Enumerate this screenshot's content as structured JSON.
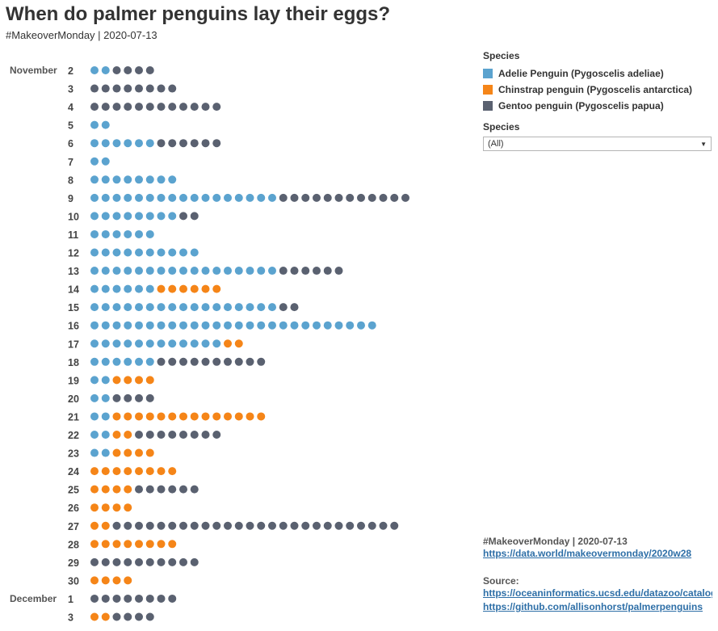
{
  "header": {
    "title": "When do palmer penguins lay their eggs?",
    "subtitle": "#MakeoverMonday | 2020-07-13"
  },
  "legend": {
    "title": "Species",
    "items": [
      {
        "label": "Adelie Penguin (Pygoscelis adeliae)",
        "color": "#5ba3cf"
      },
      {
        "label": "Chinstrap penguin (Pygoscelis antarctica)",
        "color": "#f58518"
      },
      {
        "label": "Gentoo penguin (Pygoscelis papua)",
        "color": "#5a6170"
      }
    ]
  },
  "filter": {
    "title": "Species",
    "selected": "(All)"
  },
  "footer": {
    "tag": "#MakeoverMonday | 2020-07-13",
    "link1": "https://data.world/makeovermonday/2020w28",
    "source_label": "Source:",
    "link2": "https://oceaninformatics.ucsd.edu/datazoo/catalogs/pallter/datasets/219",
    "link3": "https://github.com/allisonhorst/palmerpenguins"
  },
  "chart_data": {
    "type": "dot",
    "series": [
      {
        "name": "Adelie Penguin (Pygoscelis adeliae)",
        "color": "#5ba3cf"
      },
      {
        "name": "Chinstrap penguin (Pygoscelis antarctica)",
        "color": "#f58518"
      },
      {
        "name": "Gentoo penguin (Pygoscelis papua)",
        "color": "#5a6170"
      }
    ],
    "rows": [
      {
        "month": "November",
        "day": "2",
        "adelie": 2,
        "chinstrap": 0,
        "gentoo": 4
      },
      {
        "month": "",
        "day": "3",
        "adelie": 0,
        "chinstrap": 0,
        "gentoo": 8
      },
      {
        "month": "",
        "day": "4",
        "adelie": 0,
        "chinstrap": 0,
        "gentoo": 12
      },
      {
        "month": "",
        "day": "5",
        "adelie": 2,
        "chinstrap": 0,
        "gentoo": 0
      },
      {
        "month": "",
        "day": "6",
        "adelie": 6,
        "chinstrap": 0,
        "gentoo": 6
      },
      {
        "month": "",
        "day": "7",
        "adelie": 2,
        "chinstrap": 0,
        "gentoo": 0
      },
      {
        "month": "",
        "day": "8",
        "adelie": 8,
        "chinstrap": 0,
        "gentoo": 0
      },
      {
        "month": "",
        "day": "9",
        "adelie": 17,
        "chinstrap": 0,
        "gentoo": 12
      },
      {
        "month": "",
        "day": "10",
        "adelie": 8,
        "chinstrap": 0,
        "gentoo": 2
      },
      {
        "month": "",
        "day": "11",
        "adelie": 6,
        "chinstrap": 0,
        "gentoo": 0
      },
      {
        "month": "",
        "day": "12",
        "adelie": 10,
        "chinstrap": 0,
        "gentoo": 0
      },
      {
        "month": "",
        "day": "13",
        "adelie": 17,
        "chinstrap": 0,
        "gentoo": 6
      },
      {
        "month": "",
        "day": "14",
        "adelie": 6,
        "chinstrap": 6,
        "gentoo": 0
      },
      {
        "month": "",
        "day": "15",
        "adelie": 17,
        "chinstrap": 0,
        "gentoo": 2
      },
      {
        "month": "",
        "day": "16",
        "adelie": 26,
        "chinstrap": 0,
        "gentoo": 0
      },
      {
        "month": "",
        "day": "17",
        "adelie": 12,
        "chinstrap": 2,
        "gentoo": 0
      },
      {
        "month": "",
        "day": "18",
        "adelie": 6,
        "chinstrap": 0,
        "gentoo": 10
      },
      {
        "month": "",
        "day": "19",
        "adelie": 2,
        "chinstrap": 4,
        "gentoo": 0
      },
      {
        "month": "",
        "day": "20",
        "adelie": 2,
        "chinstrap": 0,
        "gentoo": 4
      },
      {
        "month": "",
        "day": "21",
        "adelie": 2,
        "chinstrap": 14,
        "gentoo": 0
      },
      {
        "month": "",
        "day": "22",
        "adelie": 2,
        "chinstrap": 2,
        "gentoo": 8
      },
      {
        "month": "",
        "day": "23",
        "adelie": 2,
        "chinstrap": 4,
        "gentoo": 0
      },
      {
        "month": "",
        "day": "24",
        "adelie": 0,
        "chinstrap": 8,
        "gentoo": 0
      },
      {
        "month": "",
        "day": "25",
        "adelie": 0,
        "chinstrap": 4,
        "gentoo": 6
      },
      {
        "month": "",
        "day": "26",
        "adelie": 0,
        "chinstrap": 4,
        "gentoo": 0
      },
      {
        "month": "",
        "day": "27",
        "adelie": 0,
        "chinstrap": 2,
        "gentoo": 26
      },
      {
        "month": "",
        "day": "28",
        "adelie": 0,
        "chinstrap": 8,
        "gentoo": 0
      },
      {
        "month": "",
        "day": "29",
        "adelie": 0,
        "chinstrap": 0,
        "gentoo": 10
      },
      {
        "month": "",
        "day": "30",
        "adelie": 0,
        "chinstrap": 4,
        "gentoo": 0
      },
      {
        "month": "December",
        "day": "1",
        "adelie": 0,
        "chinstrap": 0,
        "gentoo": 8
      },
      {
        "month": "",
        "day": "3",
        "adelie": 0,
        "chinstrap": 2,
        "gentoo": 4
      }
    ]
  }
}
